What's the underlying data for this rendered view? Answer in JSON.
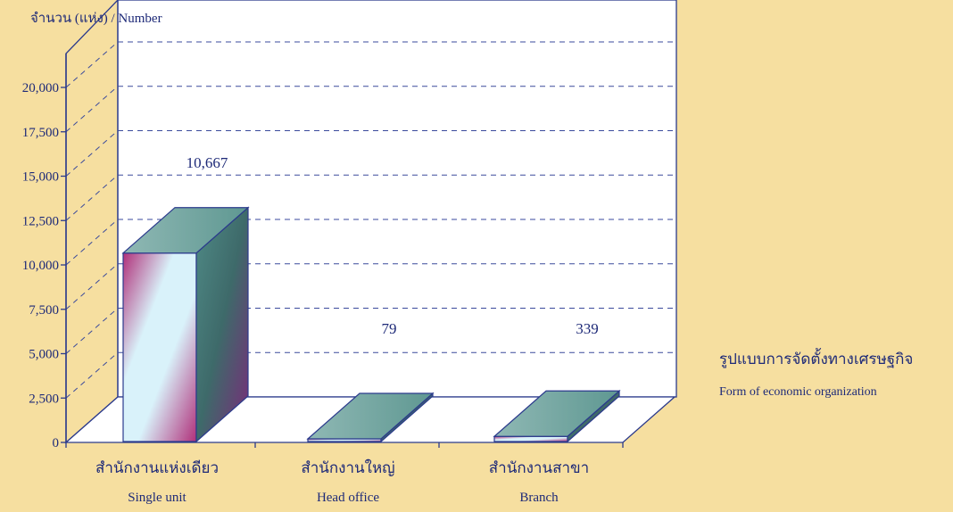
{
  "chart_data": {
    "type": "bar",
    "ylabel": "จำนวน (แห่ง)  /  Number",
    "xlabel": "รูปแบบการจัดตั้งทางเศรษฐกิจ",
    "xlabel_en": "Form of  economic organization",
    "ylim": [
      0,
      20000
    ],
    "yticks": [
      "0",
      "2,500",
      "5,000",
      "7,500",
      "10,000",
      "12,500",
      "15,000",
      "17,500",
      "20,000"
    ],
    "grid": true,
    "categories": [
      {
        "th": "สำนักงานแห่งเดียว",
        "en": "Single unit"
      },
      {
        "th": "สำนักงานใหญ่",
        "en": "Head office"
      },
      {
        "th": "สำนักงานสาขา",
        "en": "Branch"
      }
    ],
    "values": [
      10667,
      79,
      339
    ],
    "value_labels": [
      "10,667",
      "79",
      "339"
    ],
    "colors": {
      "axis": "#2b3a8c",
      "grid": "#3a4a9c",
      "bar_front_a": "#d9f2fa",
      "bar_front_b": "#b0307a",
      "bar_top": "#6fa8a2",
      "bar_side": "#3e6a6a",
      "plot_bg": "#ffffff",
      "page_bg": "#f6dfa0"
    }
  }
}
